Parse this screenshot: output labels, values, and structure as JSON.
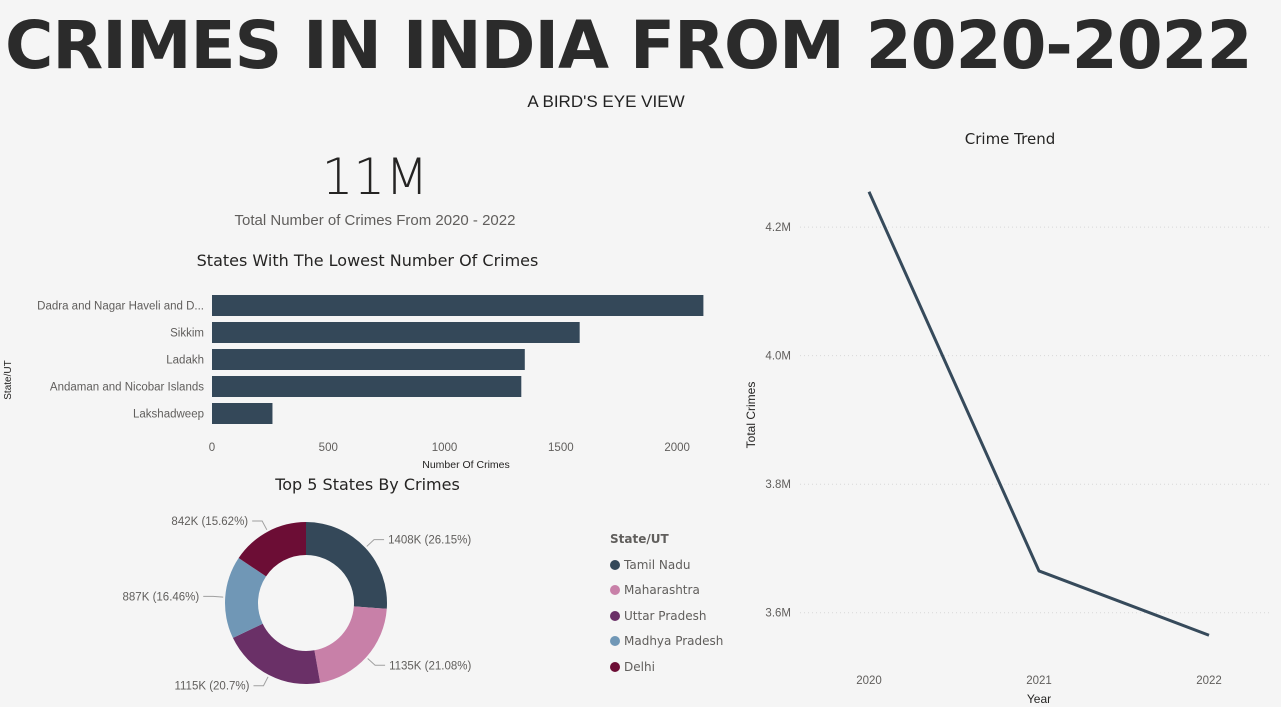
{
  "header": {
    "title": "CRIMES IN INDIA FROM 2020-2022",
    "subtitle": "A BIRD'S EYE VIEW"
  },
  "kpi": {
    "value": "11M",
    "label": "Total Number of Crimes From 2020 - 2022"
  },
  "colors": {
    "bar": "#344859",
    "line": "#364a5b",
    "text": "#252423",
    "muted": "#605e5c"
  },
  "chart_data": [
    {
      "type": "bar",
      "orientation": "horizontal",
      "title": "States With The Lowest Number Of Crimes",
      "xlabel": "Number Of Crimes",
      "ylabel": "State/UT",
      "categories": [
        "Dadra and Nagar Haveli and D...",
        "Sikkim",
        "Ladakh",
        "Andaman and Nicobar Islands",
        "Lakshadweep"
      ],
      "values": [
        2113,
        1581,
        1345,
        1330,
        260
      ],
      "xlim": [
        0,
        2150
      ],
      "xticks": [
        0,
        500,
        1000,
        1500,
        2000
      ],
      "xtick_labels": [
        "0",
        "500",
        "1000",
        "1500",
        "2000"
      ],
      "grid": false
    },
    {
      "type": "pie",
      "donut": true,
      "title": "Top 5 States By Crimes",
      "legend_title": "State/UT",
      "legend_position": "right",
      "slices": [
        {
          "label": "Tamil Nadu",
          "value": 1408,
          "data_label": "1408K (26.15%)",
          "color": "#344859"
        },
        {
          "label": "Maharashtra",
          "value": 1135,
          "data_label": "1135K (21.08%)",
          "color": "#c880a8"
        },
        {
          "label": "Uttar Pradesh",
          "value": 1115,
          "data_label": "1115K (20.7%)",
          "color": "#6a3067"
        },
        {
          "label": "Madhya Pradesh",
          "value": 887,
          "data_label": "887K (16.46%)",
          "color": "#7097b6"
        },
        {
          "label": "Delhi",
          "value": 842,
          "data_label": "842K (15.62%)",
          "color": "#6c0d35"
        }
      ]
    },
    {
      "type": "line",
      "title": "Crime Trend",
      "xlabel": "Year",
      "ylabel": "Total Crimes",
      "x": [
        "2020",
        "2021",
        "2022"
      ],
      "values": [
        4255000,
        3665000,
        3565000
      ],
      "ylim": [
        3500000,
        4320000
      ],
      "yticks": [
        3600000,
        3800000,
        4000000,
        4200000
      ],
      "ytick_labels": [
        "3.6M",
        "3.8M",
        "4.0M",
        "4.2M"
      ],
      "grid": "dotted-horizontal"
    }
  ]
}
